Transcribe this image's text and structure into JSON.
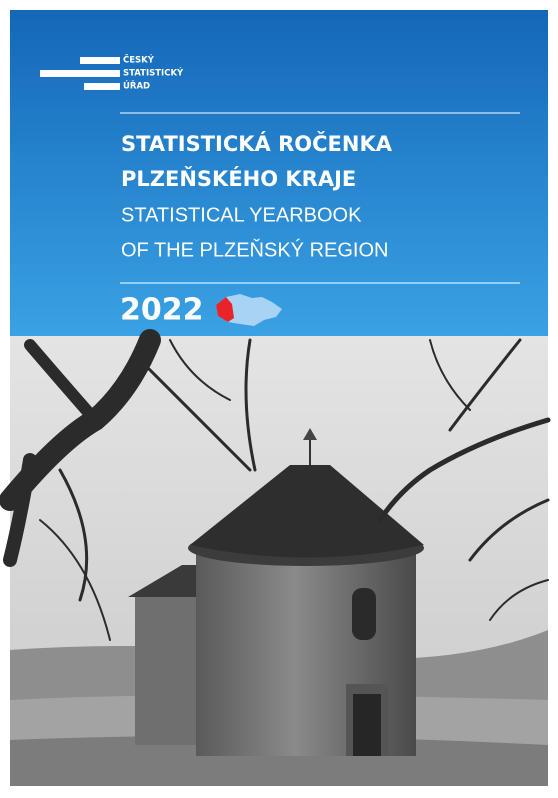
{
  "logo": {
    "lines": [
      "ČESKÝ",
      "STATISTICKÝ",
      "ÚŘAD"
    ]
  },
  "title": {
    "cs": [
      "STATISTICKÁ ROČENKA",
      "PLZEŇSKÉHO KRAJE"
    ],
    "en": [
      "STATISTICAL YEARBOOK",
      "OF THE PLZEŇSKÝ REGION"
    ]
  },
  "year": "2022"
}
